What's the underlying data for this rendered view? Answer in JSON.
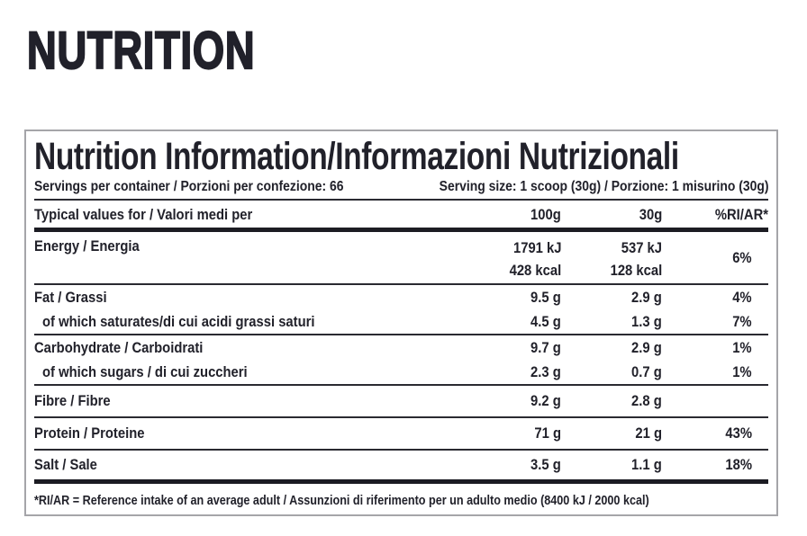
{
  "page": {
    "heading": "NUTRITION"
  },
  "colors": {
    "text": "#21212a",
    "separator_line": "#2a2a31",
    "section_bar": "#1c1c23",
    "panel_border": "#a5a5a9",
    "background": "#ffffff"
  },
  "table": {
    "title": "Nutrition Information/Informazioni Nutrizionali",
    "servings": "Servings per container / Porzioni per confezione: 66",
    "serving_size": "Serving size: 1 scoop (30g) / Porzione: 1 misurino (30g)",
    "header": {
      "label": "Typical values for / Valori medi per",
      "col_100g": "100g",
      "col_30g": "30g",
      "col_ri": "%RI/AR*"
    },
    "rows": [
      {
        "label": "Energy / Energia",
        "v100": "1791 kJ",
        "v100b": "428 kcal",
        "v30": "537 kJ",
        "v30b": "128 kcal",
        "ri": "6%"
      },
      {
        "label": "Fat / Grassi",
        "v100": "9.5 g",
        "v30": "2.9 g",
        "ri": "4%"
      },
      {
        "label": "of which saturates/di cui acidi grassi saturi",
        "v100": "4.5 g",
        "v30": "1.3 g",
        "ri": "7%"
      },
      {
        "label": "Carbohydrate / Carboidrati",
        "v100": "9.7 g",
        "v30": "2.9 g",
        "ri": "1%"
      },
      {
        "label": "of which sugars / di cui zuccheri",
        "v100": "2.3 g",
        "v30": "0.7 g",
        "ri": "1%"
      },
      {
        "label": "Fibre / Fibre",
        "v100": "9.2 g",
        "v30": "2.8 g",
        "ri": ""
      },
      {
        "label": "Protein / Proteine",
        "v100": "71 g",
        "v30": "21 g",
        "ri": "43%"
      },
      {
        "label": "Salt / Sale",
        "v100": "3.5 g",
        "v30": "1.1 g",
        "ri": "18%"
      }
    ],
    "footnote": "*RI/AR = Reference intake of an average adult / Assunzioni di riferimento per un adulto medio (8400 kJ / 2000 kcal)"
  }
}
